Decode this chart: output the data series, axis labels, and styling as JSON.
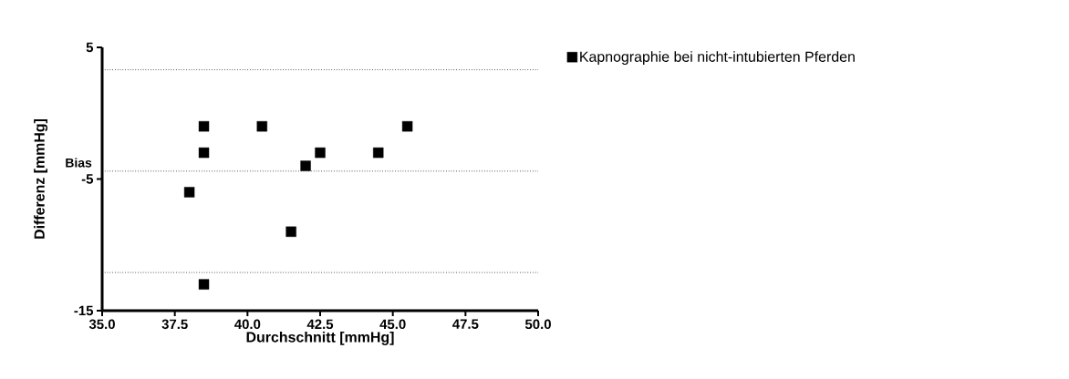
{
  "chart_data": {
    "type": "scatter",
    "xlabel": "Durchschnitt [mmHg]",
    "ylabel": "Differenz [mmHg]",
    "series": [
      {
        "name": "Kapnographie bei nicht-intubierten Pferden",
        "color": "#000000",
        "x": [
          38.0,
          38.5,
          38.5,
          38.5,
          40.5,
          41.5,
          42.0,
          42.5,
          44.5,
          45.5
        ],
        "values": [
          -6,
          -1,
          -3,
          -13,
          -1,
          -9,
          -4,
          -3,
          -3,
          -1
        ]
      }
    ],
    "xlim": [
      35,
      50
    ],
    "xticks": [
      {
        "value": 35,
        "label": "35.0"
      },
      {
        "value": 37.5,
        "label": "37.5"
      },
      {
        "value": 40,
        "label": "40.0"
      },
      {
        "value": 42.5,
        "label": "42.5"
      },
      {
        "value": 45,
        "label": "45.0"
      },
      {
        "value": 47.5,
        "label": "47.5"
      },
      {
        "value": 50,
        "label": "50.0"
      }
    ],
    "ylim": [
      -15,
      5
    ],
    "yticks": [
      -15,
      -5,
      5
    ],
    "ref_lines": [
      {
        "axis": "y",
        "value": 3.3,
        "line_style": "dotted"
      },
      {
        "axis": "y",
        "value": -4.4,
        "label": "Bias",
        "line_style": "dotted"
      },
      {
        "axis": "y",
        "value": -12.1,
        "line_style": "dotted"
      }
    ],
    "marker": "square",
    "legend": "top right",
    "grid": false
  }
}
